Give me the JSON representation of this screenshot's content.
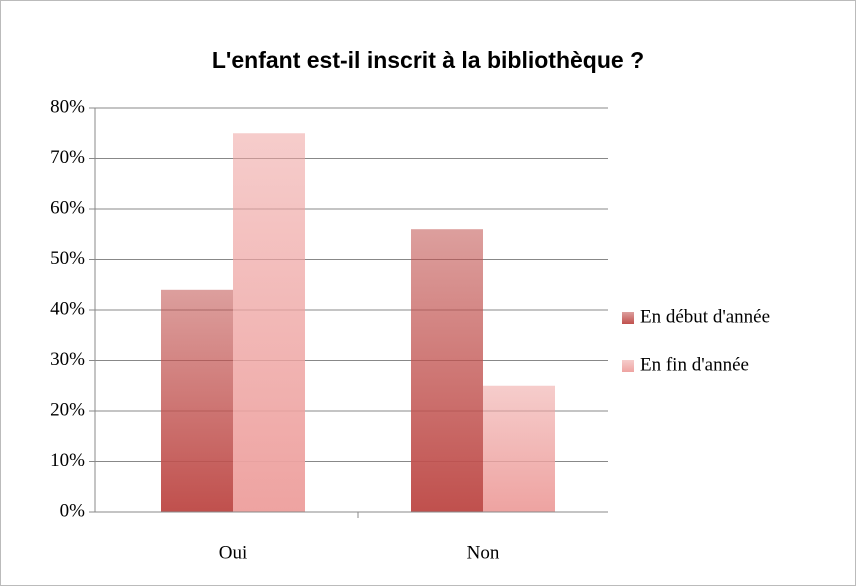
{
  "chart_data": {
    "type": "bar",
    "title": "L'enfant est-il inscrit à la bibliothèque ?",
    "categories": [
      "Oui",
      "Non"
    ],
    "series": [
      {
        "name": "En début d'année",
        "color": "#c0504d",
        "values": [
          44,
          56
        ]
      },
      {
        "name": "En fin d'année",
        "color": "#eea3a1",
        "values": [
          75,
          25
        ]
      }
    ],
    "ylim": [
      0,
      80
    ],
    "yticks": [
      {
        "value": 0,
        "label": "0%"
      },
      {
        "value": 10,
        "label": "10%"
      },
      {
        "value": 20,
        "label": "20%"
      },
      {
        "value": 30,
        "label": "30%"
      },
      {
        "value": 40,
        "label": "40%"
      },
      {
        "value": 50,
        "label": "50%"
      },
      {
        "value": 60,
        "label": "60%"
      },
      {
        "value": 70,
        "label": "70%"
      },
      {
        "value": 80,
        "label": "80%"
      }
    ],
    "grid": true,
    "legend": "right"
  }
}
